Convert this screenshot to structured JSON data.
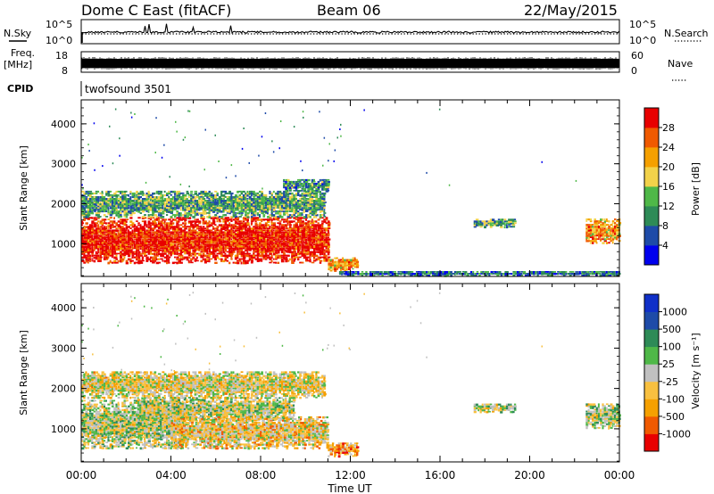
{
  "header": {
    "station": "Dome C East (fitACF)",
    "beam": "Beam 06",
    "date": "22/May/2015"
  },
  "strips": {
    "nsky": {
      "label": "N.Sky",
      "ticks": [
        "10^5",
        "10^0"
      ]
    },
    "nsearch": {
      "label": "N.Search",
      "ticks": [
        "10^5",
        "10^0"
      ]
    },
    "freq": {
      "label_top": "Freq.",
      "label_bottom": "[MHz]",
      "ticks": [
        "18",
        "8"
      ]
    },
    "nave": {
      "label": "Nave",
      "ticks": [
        "60",
        "0"
      ]
    },
    "cpid": {
      "label": "CPID",
      "value": "twofsound 3501"
    }
  },
  "power_colorbar": {
    "title": "Power [dB]",
    "ticks": [
      "28",
      "24",
      "20",
      "16",
      "12",
      "8",
      "4"
    ]
  },
  "velocity_colorbar": {
    "title": "Velocity [m s⁻¹]",
    "ticks": [
      "1000",
      "500",
      "100",
      "25",
      "-25",
      "-100",
      "-500",
      "-1000"
    ]
  },
  "chart_data": [
    {
      "type": "heatmap",
      "quantity": "Power",
      "xlabel": "Time UT",
      "ylabel": "Slant Range [km]",
      "x_ticks": [
        "00:00",
        "04:00",
        "08:00",
        "12:00",
        "16:00",
        "20:00",
        "00:00"
      ],
      "y_ticks": [
        "1000",
        "2000",
        "3000",
        "4000"
      ],
      "xlim_hours": [
        0,
        24
      ],
      "ylim_km": [
        180,
        4600
      ],
      "colorscale_db": [
        0,
        32
      ],
      "colors": [
        "#0000ee",
        "#1e4ba8",
        "#2e8b57",
        "#4fb848",
        "#f2d24a",
        "#f5a000",
        "#f05a00",
        "#e80000"
      ],
      "echo_regions": [
        {
          "t_start": 0.0,
          "t_end": 11.0,
          "range_min_km": 500,
          "range_max_km": 1650,
          "power_db": 30
        },
        {
          "t_start": 0.0,
          "t_end": 10.8,
          "range_min_km": 1650,
          "range_max_km": 2300,
          "power_db": 12
        },
        {
          "t_start": 9.0,
          "t_end": 11.0,
          "range_min_km": 2300,
          "range_max_km": 2600,
          "power_db": 10
        },
        {
          "t_start": 11.0,
          "t_end": 12.3,
          "range_min_km": 300,
          "range_max_km": 650,
          "power_db": 22
        },
        {
          "t_start": 17.5,
          "t_end": 19.3,
          "range_min_km": 1400,
          "range_max_km": 1600,
          "power_db": 12
        },
        {
          "t_start": 22.5,
          "t_end": 24.0,
          "range_min_km": 1000,
          "range_max_km": 1600,
          "power_db": 22
        },
        {
          "t_start": 11.5,
          "t_end": 24.0,
          "range_min_km": 180,
          "range_max_km": 300,
          "power_db": 8
        }
      ]
    },
    {
      "type": "heatmap",
      "quantity": "Velocity",
      "xlabel": "Time UT",
      "ylabel": "Slant Range [km]",
      "x_ticks": [
        "00:00",
        "04:00",
        "08:00",
        "12:00",
        "16:00",
        "20:00",
        "00:00"
      ],
      "y_ticks": [
        "1000",
        "2000",
        "3000",
        "4000"
      ],
      "xlim_hours": [
        0,
        24
      ],
      "ylim_km": [
        180,
        4600
      ],
      "colorscale_ms": [
        -1200,
        1200
      ],
      "colors": [
        "#e80000",
        "#f05a00",
        "#f5a000",
        "#f8c040",
        "#c0c0c0",
        "#4fb848",
        "#2e8b57",
        "#1e4ba8",
        "#1030c8"
      ],
      "echo_regions": [
        {
          "t_start": 0.0,
          "t_end": 4.5,
          "range_min_km": 500,
          "range_max_km": 1700,
          "velocity_ms": 50
        },
        {
          "t_start": 2.5,
          "t_end": 9.5,
          "range_min_km": 1200,
          "range_max_km": 1750,
          "velocity_ms": 0
        },
        {
          "t_start": 4.0,
          "t_end": 11.0,
          "range_min_km": 500,
          "range_max_km": 1300,
          "velocity_ms": -250
        },
        {
          "t_start": 0.0,
          "t_end": 10.8,
          "range_min_km": 1750,
          "range_max_km": 2400,
          "velocity_ms": -150
        },
        {
          "t_start": 11.0,
          "t_end": 12.3,
          "range_min_km": 300,
          "range_max_km": 650,
          "velocity_ms": -500
        },
        {
          "t_start": 17.5,
          "t_end": 19.3,
          "range_min_km": 1400,
          "range_max_km": 1600,
          "velocity_ms": 60
        },
        {
          "t_start": 22.5,
          "t_end": 24.0,
          "range_min_km": 1000,
          "range_max_km": 1600,
          "velocity_ms": 50
        }
      ]
    }
  ]
}
